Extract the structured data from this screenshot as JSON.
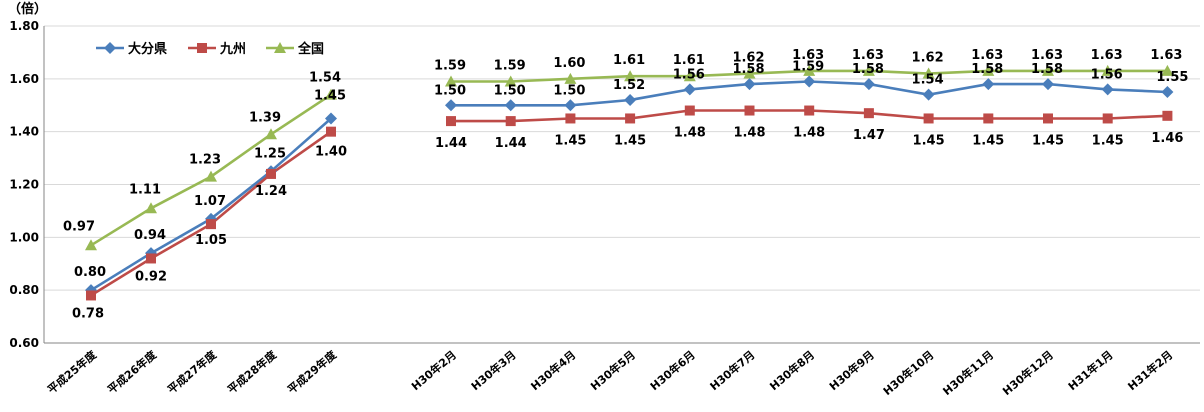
{
  "chart_data": {
    "type": "line",
    "unit_label": "（倍）",
    "ylim": [
      0.6,
      1.8
    ],
    "y_ticks": [
      "0.60",
      "0.80",
      "1.00",
      "1.20",
      "1.40",
      "1.60",
      "1.80"
    ],
    "grid": true,
    "legend_position": "top-left",
    "categories": [
      "平成25年度",
      "平成26年度",
      "平成27年度",
      "平成28年度",
      "平成29年度",
      "H30年2月",
      "H30年3月",
      "H30年4月",
      "H30年5月",
      "H30年6月",
      "H30年7月",
      "H30年8月",
      "H30年9月",
      "H30年10月",
      "H30年11月",
      "H30年12月",
      "H31年1月",
      "H31年2月"
    ],
    "series": [
      {
        "name": "大分県",
        "color": "#4a7ebb",
        "marker": "diamond",
        "values": [
          0.8,
          0.94,
          1.07,
          1.25,
          1.45,
          1.5,
          1.5,
          1.5,
          1.52,
          1.56,
          1.58,
          1.59,
          1.58,
          1.54,
          1.58,
          1.58,
          1.56,
          1.55
        ],
        "labels": [
          "0.80",
          "0.94",
          "1.07",
          "1.25",
          "1.45",
          "1.50",
          "1.50",
          "1.50",
          "1.52",
          "1.56",
          "1.58",
          "1.59",
          "1.58",
          "1.54",
          "1.58",
          "1.58",
          "1.56",
          "1.55"
        ]
      },
      {
        "name": "九州",
        "color": "#be4b48",
        "marker": "square",
        "values": [
          0.78,
          0.92,
          1.05,
          1.24,
          1.4,
          1.44,
          1.44,
          1.45,
          1.45,
          1.48,
          1.48,
          1.48,
          1.47,
          1.45,
          1.45,
          1.45,
          1.45,
          1.46
        ],
        "labels": [
          "0.78",
          "0.92",
          "1.05",
          "1.24",
          "1.40",
          "1.44",
          "1.44",
          "1.45",
          "1.45",
          "1.48",
          "1.48",
          "1.48",
          "1.47",
          "1.45",
          "1.45",
          "1.45",
          "1.45",
          "1.46"
        ]
      },
      {
        "name": "全国",
        "color": "#98b954",
        "marker": "triangle",
        "values": [
          0.97,
          1.11,
          1.23,
          1.39,
          1.54,
          1.59,
          1.59,
          1.6,
          1.61,
          1.61,
          1.62,
          1.63,
          1.63,
          1.62,
          1.63,
          1.63,
          1.63,
          1.63
        ],
        "labels": [
          "0.97",
          "1.11",
          "1.23",
          "1.39",
          "1.54",
          "1.59",
          "1.59",
          "1.60",
          "1.61",
          "1.61",
          "1.62",
          "1.63",
          "1.63",
          "1.62",
          "1.63",
          "1.63",
          "1.63",
          "1.63"
        ]
      }
    ]
  }
}
